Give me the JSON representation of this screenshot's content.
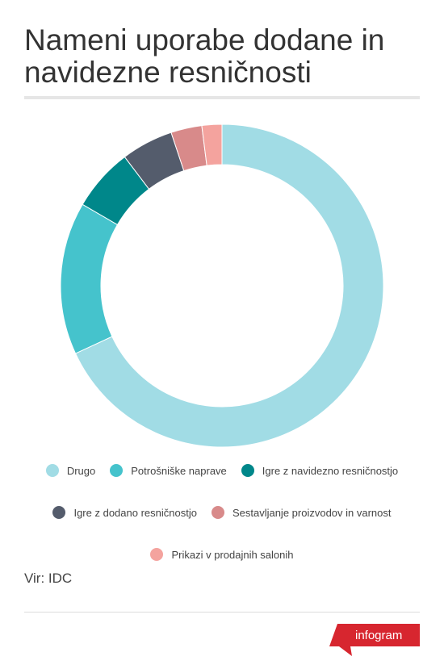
{
  "chart_data": {
    "type": "pie",
    "title": "Nameni uporabe dodane in navidezne resničnosti",
    "categories": [
      "Drugo",
      "Potrošniške naprave",
      "Igre z navidezno resničnostjo",
      "Igre z dodano resničnostjo",
      "Sestavljanje proizvodov in varnost",
      "Prikazi v prodajnih salonih"
    ],
    "values": [
      68.1,
      15.3,
      6.3,
      5.2,
      3.1,
      2.0
    ],
    "colors": [
      "#a1dce5",
      "#45c3cc",
      "#00878a",
      "#545c6c",
      "#d88a8a",
      "#f4a39e"
    ],
    "source": "Vir: IDC"
  },
  "brand": "infogram"
}
